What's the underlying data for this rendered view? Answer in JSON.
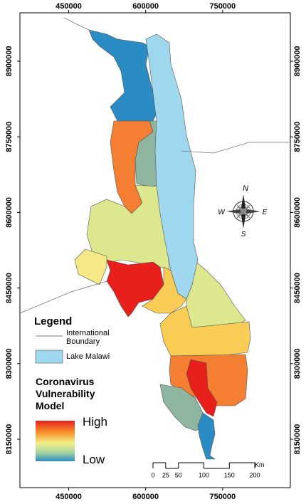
{
  "map": {
    "xlim": [
      355000,
      882000
    ],
    "ylim": [
      8054000,
      8996000
    ],
    "xticks": [
      450000,
      600000,
      750000
    ],
    "yticks": [
      8900000,
      8750000,
      8600000,
      8450000,
      8300000,
      8150000
    ]
  },
  "legend": {
    "title": "Legend",
    "items": [
      {
        "label": "International Boundary"
      },
      {
        "label": "Lake Malawi"
      }
    ]
  },
  "vulnerability_legend": {
    "title": "Coronavirus Vulnerability Model",
    "high": "High",
    "low": "Low"
  },
  "compass": {
    "north": "N",
    "east": "E",
    "south": "S",
    "west": "W"
  },
  "scale_bar": {
    "ticks": [
      0,
      25,
      50,
      100,
      150,
      200
    ],
    "unit": "Km"
  }
}
